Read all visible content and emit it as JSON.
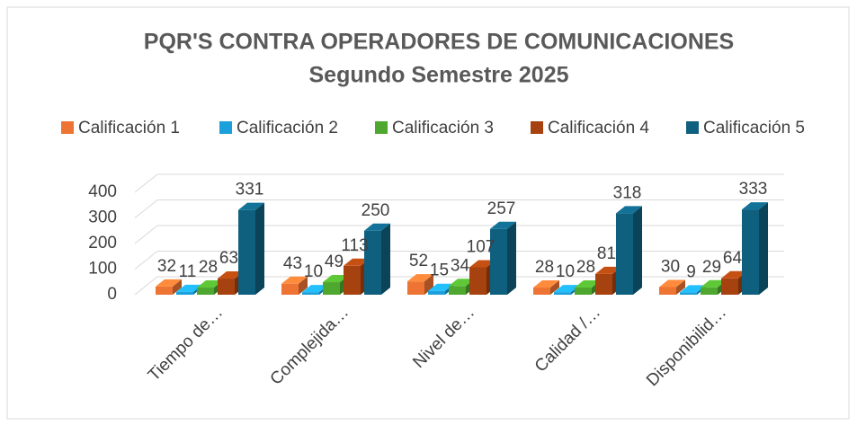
{
  "chart_data": {
    "type": "bar3d",
    "title": "PQR'S CONTRA OPERADORES DE COMUNICACIONES",
    "subtitle": "Segundo Semestre 2025",
    "categories": [
      "Tiempo de…",
      "Complejida…",
      "Nivel de…",
      "Calidad /…",
      "Disponibilid…"
    ],
    "series": [
      {
        "name": "Calificación 1",
        "color": "#ee7433",
        "values": [
          32,
          43,
          52,
          28,
          30
        ]
      },
      {
        "name": "Calificación 2",
        "color": "#1ca0dc",
        "values": [
          11,
          10,
          15,
          10,
          9
        ]
      },
      {
        "name": "Calificación 3",
        "color": "#4ea72e",
        "values": [
          28,
          49,
          34,
          28,
          29
        ]
      },
      {
        "name": "Calificación 4",
        "color": "#a5420f",
        "values": [
          63,
          113,
          107,
          81,
          64
        ]
      },
      {
        "name": "Calificación 5",
        "color": "#0f5f7f",
        "values": [
          331,
          250,
          257,
          318,
          333
        ]
      }
    ],
    "ylim": [
      0,
      400
    ],
    "yticks": [
      0,
      100,
      200,
      300,
      400
    ],
    "grid": true,
    "legend": "top"
  }
}
